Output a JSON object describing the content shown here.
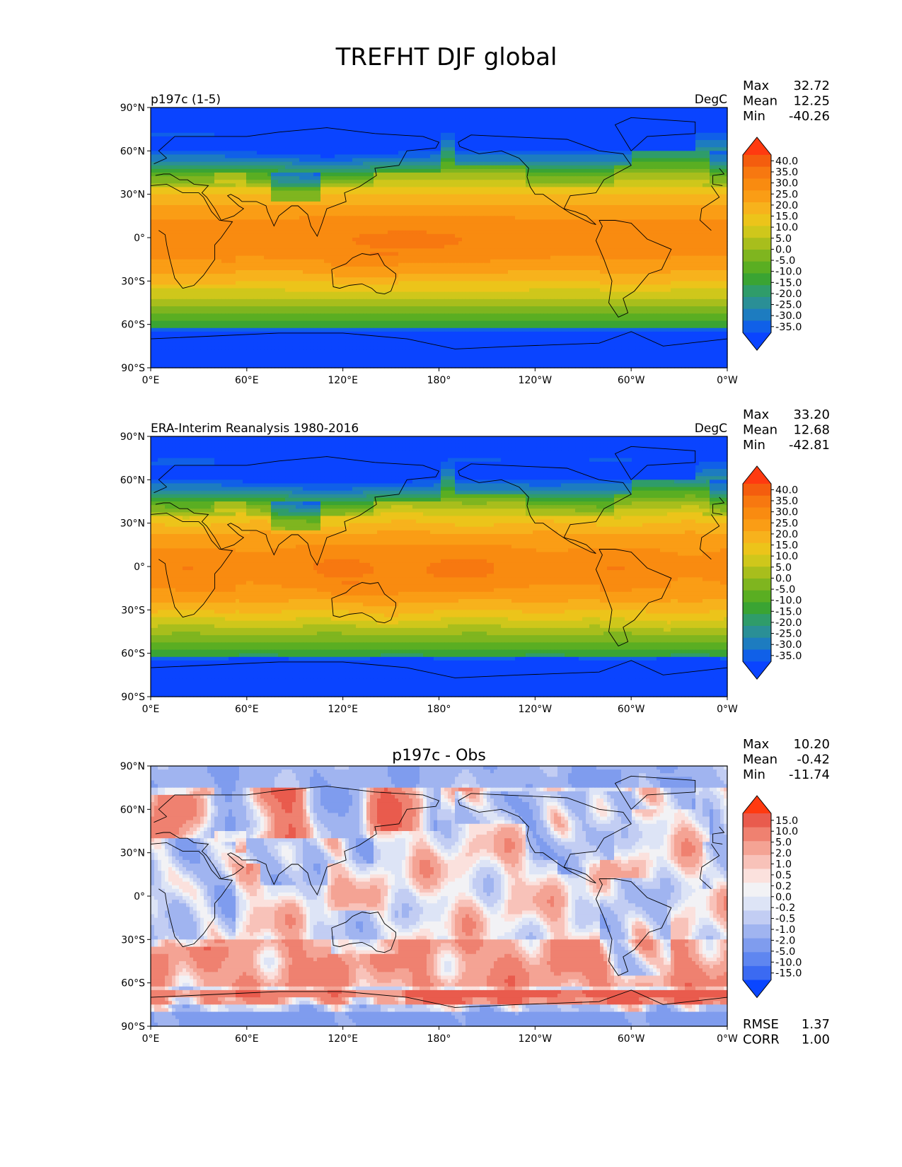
{
  "figure": {
    "title": "TREFHT DJF global"
  },
  "colors": {
    "temp_cmap": [
      "#0a44ff",
      "#1060e8",
      "#1d7cc0",
      "#2a8f96",
      "#2f9c6a",
      "#3aa433",
      "#5aae22",
      "#7fb51f",
      "#a8be1c",
      "#cfc71b",
      "#ecc41a",
      "#f7b21c",
      "#fa9d15",
      "#f98b10",
      "#f77810",
      "#f45d0e",
      "#ff3a10"
    ],
    "diff_cmap": [
      "#0a46ff",
      "#3b6af2",
      "#5f86f0",
      "#7f9cee",
      "#a0b4f0",
      "#c2cdf3",
      "#dde4f6",
      "#f2f2f5",
      "#fbe1dd",
      "#f8c2b9",
      "#f4a394",
      "#ef8170",
      "#e95b4d",
      "#ff3a10"
    ],
    "ocean_mid": "#f7930f",
    "coast": "#000000"
  },
  "panels": [
    {
      "id": "test",
      "title_left": "p197c (1-5)",
      "title_center": "",
      "title_right": "DegC",
      "stats": [
        {
          "label": "Max",
          "value": "32.72"
        },
        {
          "label": "Mean",
          "value": "12.25"
        },
        {
          "label": "Min",
          "value": "-40.26"
        }
      ],
      "colorbar_ticks": [
        "40.0",
        "35.0",
        "30.0",
        "25.0",
        "20.0",
        "15.0",
        "10.0",
        "5.0",
        "0.0",
        "-5.0",
        "-10.0",
        "-15.0",
        "-20.0",
        "-25.0",
        "-30.0",
        "-35.0"
      ],
      "extra_stats": []
    },
    {
      "id": "ref",
      "title_left": "ERA-Interim Reanalysis 1980-2016",
      "title_center": "",
      "title_right": "DegC",
      "stats": [
        {
          "label": "Max",
          "value": "33.20"
        },
        {
          "label": "Mean",
          "value": "12.68"
        },
        {
          "label": "Min",
          "value": "-42.81"
        }
      ],
      "colorbar_ticks": [
        "40.0",
        "35.0",
        "30.0",
        "25.0",
        "20.0",
        "15.0",
        "10.0",
        "5.0",
        "0.0",
        "-5.0",
        "-10.0",
        "-15.0",
        "-20.0",
        "-25.0",
        "-30.0",
        "-35.0"
      ],
      "extra_stats": []
    },
    {
      "id": "diff",
      "title_left": "",
      "title_center": "p197c - Obs",
      "title_right": "",
      "stats": [
        {
          "label": "Max",
          "value": "10.20"
        },
        {
          "label": "Mean",
          "value": "-0.42"
        },
        {
          "label": "Min",
          "value": "-11.74"
        }
      ],
      "colorbar_ticks": [
        "15.0",
        "10.0",
        "5.0",
        "2.0",
        "1.0",
        "0.5",
        "0.2",
        "0.0",
        "-0.2",
        "-0.5",
        "-1.0",
        "-2.0",
        "-5.0",
        "-10.0",
        "-15.0"
      ],
      "extra_stats": [
        {
          "label": "RMSE",
          "value": "1.37"
        },
        {
          "label": "CORR",
          "value": "1.00"
        }
      ]
    }
  ],
  "chart_data": [
    {
      "type": "heatmap",
      "title": "p197c (1-5)",
      "units": "DegC",
      "x_ticks": [
        "0°E",
        "60°E",
        "120°E",
        "180°",
        "120°W",
        "60°W",
        "0°W"
      ],
      "y_ticks": [
        "90°N",
        "60°N",
        "30°N",
        "0°",
        "30°S",
        "60°S",
        "90°S"
      ],
      "xlim": [
        0,
        360
      ],
      "ylim": [
        -90,
        90
      ],
      "levels": [
        -35,
        -30,
        -25,
        -20,
        -15,
        -10,
        -5,
        0,
        5,
        10,
        15,
        20,
        25,
        30,
        35,
        40
      ],
      "stats": {
        "max": 32.72,
        "mean": 12.25,
        "min": -40.26
      }
    },
    {
      "type": "heatmap",
      "title": "ERA-Interim Reanalysis 1980-2016",
      "units": "DegC",
      "x_ticks": [
        "0°E",
        "60°E",
        "120°E",
        "180°",
        "120°W",
        "60°W",
        "0°W"
      ],
      "y_ticks": [
        "90°N",
        "60°N",
        "30°N",
        "0°",
        "30°S",
        "60°S",
        "90°S"
      ],
      "xlim": [
        0,
        360
      ],
      "ylim": [
        -90,
        90
      ],
      "levels": [
        -35,
        -30,
        -25,
        -20,
        -15,
        -10,
        -5,
        0,
        5,
        10,
        15,
        20,
        25,
        30,
        35,
        40
      ],
      "stats": {
        "max": 33.2,
        "mean": 12.68,
        "min": -42.81
      }
    },
    {
      "type": "heatmap",
      "title": "p197c - Obs",
      "x_ticks": [
        "0°E",
        "60°E",
        "120°E",
        "180°",
        "120°W",
        "60°W",
        "0°W"
      ],
      "y_ticks": [
        "90°N",
        "60°N",
        "30°N",
        "0°",
        "30°S",
        "60°S",
        "90°S"
      ],
      "xlim": [
        0,
        360
      ],
      "ylim": [
        -90,
        90
      ],
      "levels": [
        -15,
        -10,
        -5,
        -2,
        -1,
        -0.5,
        -0.2,
        0,
        0.2,
        0.5,
        1,
        2,
        5,
        10,
        15
      ],
      "stats": {
        "max": 10.2,
        "mean": -0.42,
        "min": -11.74,
        "rmse": 1.37,
        "corr": 1.0
      }
    }
  ]
}
